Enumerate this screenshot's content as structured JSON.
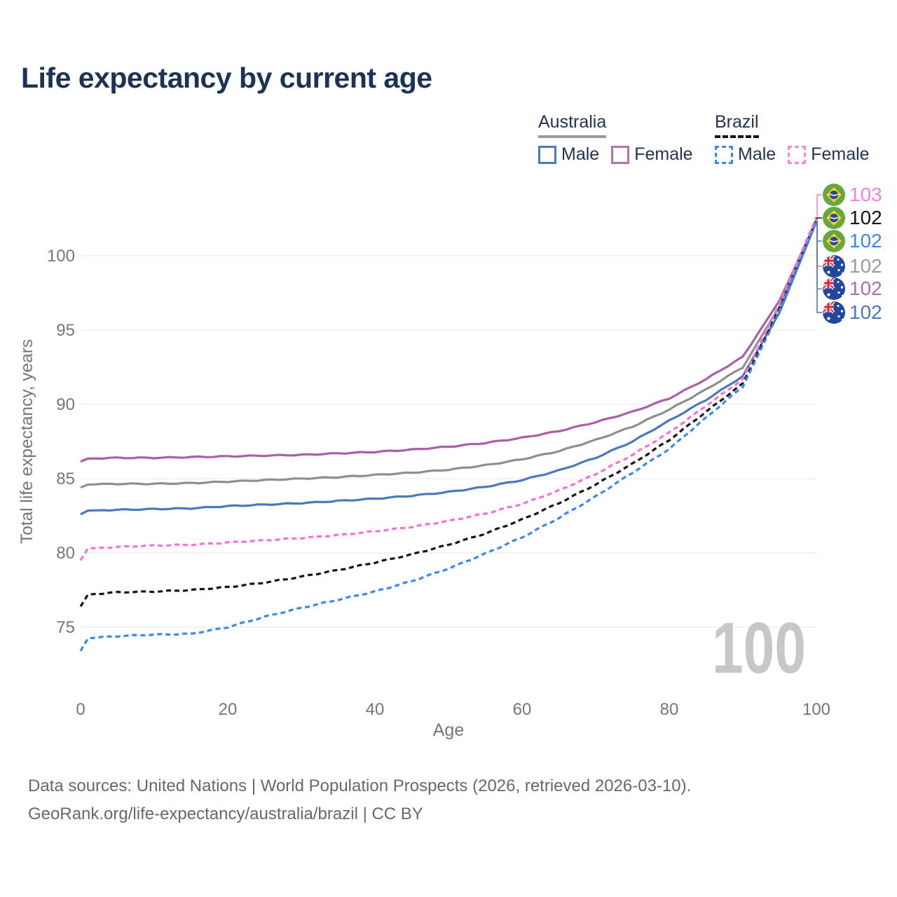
{
  "title": "Life expectancy by current age",
  "legend": {
    "groups": [
      {
        "country": "Australia",
        "line_style": "solid",
        "underline_color": "#9b9b9b",
        "items": [
          {
            "label": "Male",
            "color": "#4b79be",
            "dash": false
          },
          {
            "label": "Female",
            "color": "#b472b4",
            "dash": false
          }
        ]
      },
      {
        "country": "Brazil",
        "line_style": "dashed",
        "underline_color": "#141414",
        "items": [
          {
            "label": "Male",
            "color": "#3b87f2",
            "dash": true
          },
          {
            "label": "Female",
            "color": "#f986dd",
            "dash": true
          }
        ]
      }
    ]
  },
  "axes": {
    "x": {
      "label": "Age",
      "ticks": [
        0,
        20,
        40,
        60,
        80,
        100
      ],
      "range": [
        0,
        100
      ]
    },
    "y": {
      "label": "Total life expectancy, years",
      "ticks": [
        75,
        80,
        85,
        90,
        95,
        100
      ],
      "range": [
        73,
        103.5
      ]
    }
  },
  "watermark": "100",
  "chart_data": {
    "type": "line",
    "title": "Life expectancy by current age",
    "xlabel": "Age",
    "ylabel": "Total life expectancy, years",
    "xlim": [
      0,
      100
    ],
    "ylim": [
      73,
      103.5
    ],
    "grid": "horizontal",
    "x": [
      0,
      1,
      5,
      10,
      15,
      20,
      25,
      30,
      35,
      40,
      45,
      50,
      55,
      60,
      65,
      70,
      75,
      80,
      85,
      90,
      95,
      100
    ],
    "series": [
      {
        "id": "aus-female",
        "country": "Australia",
        "name": "Female",
        "color": "#a95fa9",
        "dash": false,
        "values": [
          86.15,
          86.35,
          86.4,
          86.4,
          86.45,
          86.5,
          86.55,
          86.6,
          86.7,
          86.8,
          86.95,
          87.15,
          87.4,
          87.75,
          88.2,
          88.8,
          89.5,
          90.4,
          91.7,
          93.2,
          97.0,
          102.35
        ]
      },
      {
        "id": "aus-both",
        "country": "Australia",
        "name": "Both sexes",
        "color": "#8f8f8f",
        "dash": false,
        "values": [
          84.4,
          84.6,
          84.65,
          84.65,
          84.7,
          84.8,
          84.9,
          85.0,
          85.1,
          85.25,
          85.4,
          85.6,
          85.9,
          86.3,
          86.85,
          87.6,
          88.5,
          89.65,
          91.0,
          92.5,
          96.6,
          102.4
        ]
      },
      {
        "id": "aus-male",
        "country": "Australia",
        "name": "Male",
        "color": "#4b79be",
        "dash": false,
        "values": [
          82.6,
          82.85,
          82.9,
          82.95,
          83.0,
          83.15,
          83.25,
          83.35,
          83.5,
          83.65,
          83.85,
          84.1,
          84.45,
          84.9,
          85.55,
          86.4,
          87.5,
          88.9,
          90.3,
          91.9,
          96.2,
          102.3
        ]
      },
      {
        "id": "bra-both",
        "country": "Brazil",
        "name": "Both sexes",
        "color": "#141414",
        "dash": true,
        "values": [
          76.4,
          77.2,
          77.35,
          77.4,
          77.5,
          77.7,
          78.0,
          78.4,
          78.85,
          79.35,
          79.9,
          80.55,
          81.3,
          82.25,
          83.35,
          84.6,
          86.0,
          87.6,
          89.5,
          91.4,
          96.5,
          102.45
        ]
      },
      {
        "id": "bra-male",
        "country": "Brazil",
        "name": "Male",
        "color": "#3b87f2",
        "dash": true,
        "values": [
          73.4,
          74.25,
          74.4,
          74.5,
          74.55,
          75.0,
          75.7,
          76.3,
          76.85,
          77.4,
          78.1,
          78.95,
          79.95,
          81.05,
          82.35,
          83.8,
          85.4,
          87.0,
          89.1,
          91.2,
          96.3,
          102.4
        ]
      },
      {
        "id": "bra-female",
        "country": "Brazil",
        "name": "Female",
        "color": "#f970d7",
        "dash": true,
        "values": [
          79.5,
          80.3,
          80.4,
          80.5,
          80.55,
          80.7,
          80.85,
          81.0,
          81.2,
          81.45,
          81.75,
          82.15,
          82.65,
          83.3,
          84.2,
          85.3,
          86.6,
          88.1,
          89.9,
          91.7,
          96.8,
          102.6
        ]
      }
    ],
    "end_labels": [
      {
        "value": "103",
        "series_id": "bra-female",
        "series": "Brazil Female",
        "flag": "brazil",
        "color": "#f97fd9"
      },
      {
        "value": "102",
        "series_id": "bra-both",
        "series": "Brazil Both sexes",
        "flag": "brazil",
        "color": "#141414"
      },
      {
        "value": "102",
        "series_id": "bra-male",
        "series": "Brazil Male",
        "flag": "brazil",
        "color": "#3b87f2"
      },
      {
        "value": "102",
        "series_id": "aus-both",
        "series": "Australia Both sexes",
        "flag": "australia",
        "color": "#9b9b9b"
      },
      {
        "value": "102",
        "series_id": "aus-female",
        "series": "Australia Female",
        "flag": "australia",
        "color": "#ab6fad"
      },
      {
        "value": "102",
        "series_id": "aus-male",
        "series": "Australia Male",
        "flag": "australia",
        "color": "#4c77bd"
      }
    ]
  },
  "colors": {
    "title_text": "#1c3355",
    "axis_text": "#767676",
    "grid": "#e9e9e9",
    "watermark": "#c7c7c7",
    "footer_text": "#686868"
  },
  "footer": {
    "line1": "Data sources: United Nations | World Population Prospects (2026, retrieved 2026-03-10).",
    "line2": "GeoRank.org/life-expectancy/australia/brazil | CC BY"
  }
}
